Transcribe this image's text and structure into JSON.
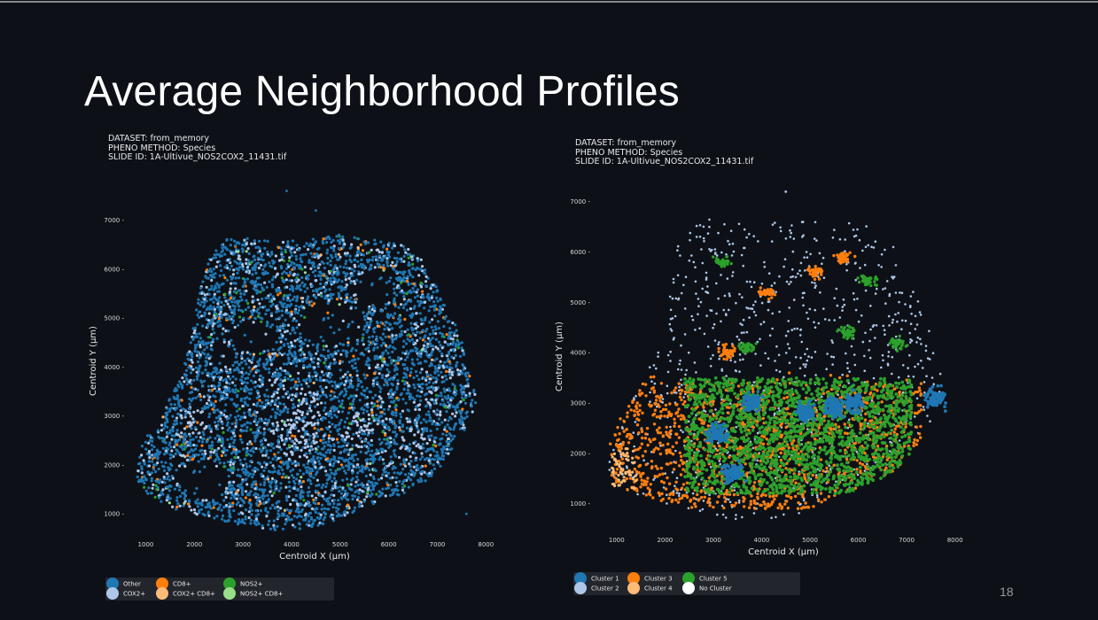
{
  "slide": {
    "title": "Average Neighborhood Profiles",
    "page_number": "18"
  },
  "colors": {
    "background": "#0d1117",
    "legend_box": "#22252c",
    "other": "#1f77b4",
    "cox2": "#aec7e8",
    "cd8": "#ff7f0e",
    "cox2_cd8": "#ffbb78",
    "nos2": "#2ca02c",
    "nos2_cd8": "#98df8a",
    "no_cluster": "#ffffff"
  },
  "chart_data": [
    {
      "type": "scatter",
      "meta": [
        "DATASET: from_memory",
        "PHENO METHOD: Species",
        "SLIDE ID: 1A-Ultivue_NOS2COX2_11431.tif"
      ],
      "xlabel": "Centroid X (μm)",
      "ylabel": "Centroid Y (μm)",
      "xticks": [
        1000,
        2000,
        3000,
        4000,
        5000,
        6000,
        7000,
        8000
      ],
      "yticks": [
        1000,
        2000,
        3000,
        4000,
        5000,
        6000,
        7000
      ],
      "xlim": [
        700,
        8250
      ],
      "ylim": [
        550,
        7700
      ],
      "grid": false,
      "legend_position": "below",
      "legend": [
        {
          "label": "Other",
          "color": "#1f77b4"
        },
        {
          "label": "COX2+",
          "color": "#aec7e8"
        },
        {
          "label": "CD8+",
          "color": "#ff7f0e"
        },
        {
          "label": "COX2+ CD8+",
          "color": "#ffbb78"
        },
        {
          "label": "NOS2+",
          "color": "#2ca02c"
        },
        {
          "label": "NOS2+ CD8+",
          "color": "#98df8a"
        }
      ],
      "series_weights": {
        "Other": 0.74,
        "COX2+": 0.2,
        "CD8+": 0.03,
        "COX2+ CD8+": 0.005,
        "NOS2+": 0.02,
        "NOS2+ CD8+": 0.005
      },
      "tissue_outline": [
        [
          830,
          1700
        ],
        [
          950,
          1450
        ],
        [
          1250,
          1250
        ],
        [
          1600,
          1100
        ],
        [
          2000,
          1000
        ],
        [
          2500,
          880
        ],
        [
          3000,
          760
        ],
        [
          3500,
          680
        ],
        [
          3900,
          640
        ],
        [
          4300,
          700
        ],
        [
          4800,
          820
        ],
        [
          5200,
          1000
        ],
        [
          5700,
          1200
        ],
        [
          6300,
          1400
        ],
        [
          6800,
          1700
        ],
        [
          7100,
          2000
        ],
        [
          7300,
          2300
        ],
        [
          7500,
          2600
        ],
        [
          7700,
          3000
        ],
        [
          7800,
          3300
        ],
        [
          7750,
          3600
        ],
        [
          7600,
          4000
        ],
        [
          7500,
          4600
        ],
        [
          7250,
          5100
        ],
        [
          7000,
          5600
        ],
        [
          6700,
          6200
        ],
        [
          6300,
          6500
        ],
        [
          5800,
          6600
        ],
        [
          5000,
          6700
        ],
        [
          4300,
          6600
        ],
        [
          3600,
          6550
        ],
        [
          3000,
          6700
        ],
        [
          2600,
          6600
        ],
        [
          2300,
          6300
        ],
        [
          2100,
          5600
        ],
        [
          1950,
          4600
        ],
        [
          1750,
          3900
        ],
        [
          1500,
          3400
        ],
        [
          1300,
          3000
        ],
        [
          1000,
          2600
        ],
        [
          850,
          2200
        ]
      ],
      "voids": [
        [
          2200,
          1700,
          500,
          420
        ],
        [
          3200,
          4600,
          500,
          300
        ],
        [
          4800,
          4900,
          700,
          450
        ],
        [
          5700,
          5600,
          400,
          380
        ],
        [
          2600,
          4200,
          250,
          250
        ]
      ],
      "outliers": [
        [
          3900,
          7600
        ],
        [
          4500,
          7200
        ],
        [
          7600,
          1000
        ]
      ]
    },
    {
      "type": "scatter",
      "meta": [
        "DATASET: from_memory",
        "PHENO METHOD: Species",
        "SLIDE ID: 1A-Ultivue_NOS2COX2_11431.tif"
      ],
      "xlabel": "Centroid X (μm)",
      "ylabel": "Centroid Y (μm)",
      "xticks": [
        1000,
        2000,
        3000,
        4000,
        5000,
        6000,
        7000,
        8000
      ],
      "yticks": [
        1000,
        2000,
        3000,
        4000,
        5000,
        6000,
        7000
      ],
      "xlim": [
        600,
        8300
      ],
      "ylim": [
        450,
        7400
      ],
      "grid": false,
      "legend_position": "below",
      "legend": [
        {
          "label": "Cluster 1",
          "color": "#1f77b4"
        },
        {
          "label": "Cluster 2",
          "color": "#aec7e8"
        },
        {
          "label": "Cluster 3",
          "color": "#ff7f0e"
        },
        {
          "label": "Cluster 4",
          "color": "#ffbb78"
        },
        {
          "label": "Cluster 5",
          "color": "#2ca02c"
        },
        {
          "label": "No Cluster",
          "color": "#ffffff"
        }
      ],
      "clusters": [
        {
          "name": "Cluster 5",
          "region": [
            [
              2300,
              1200
            ],
            [
              6900,
              3400
            ]
          ],
          "weight": 0.45
        },
        {
          "name": "Cluster 3",
          "region": [
            [
              800,
              1000
            ],
            [
              7300,
              3600
            ]
          ],
          "weight": 0.22
        },
        {
          "name": "Cluster 1",
          "centers": [
            [
              3100,
              2400
            ],
            [
              3800,
              3000
            ],
            [
              4900,
              2800
            ],
            [
              5500,
              2900
            ],
            [
              5900,
              3000
            ],
            [
              7600,
              3100
            ],
            [
              3400,
              1600
            ]
          ],
          "weight": 0.1
        },
        {
          "name": "Cluster 2",
          "region": [
            [
              1200,
              700
            ],
            [
              7500,
              6700
            ]
          ],
          "weight": 0.2
        },
        {
          "name": "Cluster 4",
          "region": [
            [
              800,
              1100
            ],
            [
              1500,
              2200
            ]
          ],
          "weight": 0.03
        }
      ],
      "outliers": [
        [
          4500,
          7200
        ]
      ]
    }
  ]
}
